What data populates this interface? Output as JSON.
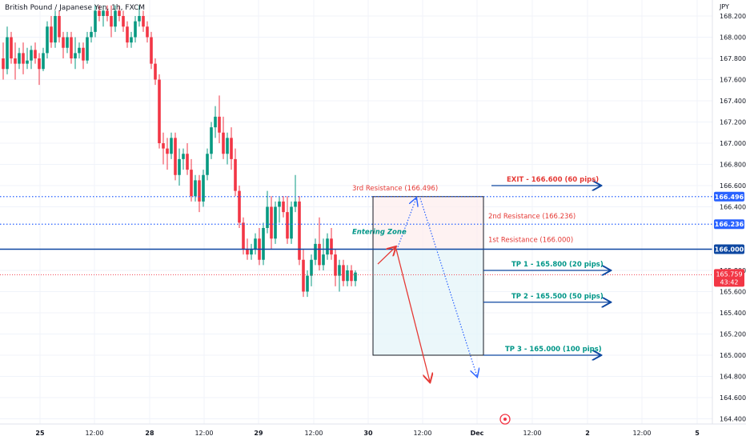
{
  "window": {
    "title": "British Pound / Japanese Yen, 1h, FXCM",
    "currency": "JPY"
  },
  "colors": {
    "bull": "#089981",
    "bear": "#f23645",
    "blue": "#0d47a1",
    "dotted_blue": "#2962ff",
    "red_text": "#e53935",
    "teal_text": "#009688"
  },
  "price_axis": {
    "ticks": [
      "168.200",
      "168.000",
      "167.800",
      "167.600",
      "167.400",
      "167.200",
      "167.000",
      "166.800",
      "166.600",
      "166.400",
      "165.800",
      "165.600",
      "165.400",
      "165.200",
      "165.000",
      "164.800",
      "164.600",
      "164.400"
    ],
    "badges": {
      "r3": "166.496",
      "r2": "166.236",
      "r1": "166.000",
      "last_price": "165.759",
      "countdown": "43:42"
    }
  },
  "time_axis": {
    "labels": [
      "25",
      "12:00",
      "28",
      "12:00",
      "29",
      "12:00",
      "30",
      "12:00",
      "Dec",
      "12:00",
      "2",
      "12:00",
      "5"
    ]
  },
  "annotations": {
    "r3_label": "3rd Resistance (166.496)",
    "r2_label": "2nd Resistance (166.236)",
    "r1_label": "1st Resistance (166.000)",
    "entering_zone": "Entering Zone",
    "exit_label": "EXIT - 166.600 (60 pips)",
    "tp1_label": "TP 1 - 165.800 (20 pips)",
    "tp2_label": "TP 2 - 165.500 (50 pips)",
    "tp3_label": "TP 3 - 165.000 (100 pips)"
  },
  "chart_data": {
    "type": "candlestick",
    "title": "British Pound / Japanese Yen, 1h, FXCM",
    "y_unit": "JPY",
    "ylim": [
      164.35,
      168.3
    ],
    "levels": [
      {
        "name": "3rd Resistance",
        "value": 166.496
      },
      {
        "name": "2nd Resistance",
        "value": 166.236
      },
      {
        "name": "1st Resistance",
        "value": 166.0
      },
      {
        "name": "Last price",
        "value": 165.759
      }
    ],
    "targets": [
      {
        "name": "EXIT",
        "value": 166.6,
        "pips": 60
      },
      {
        "name": "TP 1",
        "value": 165.8,
        "pips": 20
      },
      {
        "name": "TP 2",
        "value": 165.5,
        "pips": 50
      },
      {
        "name": "TP 3",
        "value": 165.0,
        "pips": 100
      }
    ],
    "ohlc": [
      {
        "o": 167.8,
        "h": 167.95,
        "l": 167.6,
        "c": 167.7
      },
      {
        "o": 167.7,
        "h": 168.1,
        "l": 167.65,
        "c": 168.0
      },
      {
        "o": 168.0,
        "h": 168.05,
        "l": 167.75,
        "c": 167.8
      },
      {
        "o": 167.8,
        "h": 167.95,
        "l": 167.6,
        "c": 167.75
      },
      {
        "o": 167.75,
        "h": 167.9,
        "l": 167.7,
        "c": 167.85
      },
      {
        "o": 167.85,
        "h": 167.95,
        "l": 167.65,
        "c": 167.75
      },
      {
        "o": 167.75,
        "h": 167.9,
        "l": 167.7,
        "c": 167.78
      },
      {
        "o": 167.78,
        "h": 167.92,
        "l": 167.7,
        "c": 167.88
      },
      {
        "o": 167.88,
        "h": 167.95,
        "l": 167.75,
        "c": 167.8
      },
      {
        "o": 167.8,
        "h": 167.85,
        "l": 167.55,
        "c": 167.7
      },
      {
        "o": 167.7,
        "h": 167.9,
        "l": 167.68,
        "c": 167.85
      },
      {
        "o": 167.85,
        "h": 168.15,
        "l": 167.8,
        "c": 168.1
      },
      {
        "o": 168.1,
        "h": 168.2,
        "l": 167.9,
        "c": 167.95
      },
      {
        "o": 167.95,
        "h": 168.25,
        "l": 167.9,
        "c": 168.2
      },
      {
        "o": 168.2,
        "h": 168.25,
        "l": 167.95,
        "c": 168.0
      },
      {
        "o": 168.0,
        "h": 168.05,
        "l": 167.8,
        "c": 167.9
      },
      {
        "o": 167.9,
        "h": 168.05,
        "l": 167.85,
        "c": 168.0
      },
      {
        "o": 168.0,
        "h": 168.05,
        "l": 167.75,
        "c": 167.8
      },
      {
        "o": 167.8,
        "h": 168.0,
        "l": 167.7,
        "c": 167.85
      },
      {
        "o": 167.85,
        "h": 167.95,
        "l": 167.8,
        "c": 167.9
      },
      {
        "o": 167.9,
        "h": 167.95,
        "l": 167.7,
        "c": 167.78
      },
      {
        "o": 167.78,
        "h": 168.05,
        "l": 167.75,
        "c": 168.0
      },
      {
        "o": 168.0,
        "h": 168.1,
        "l": 167.95,
        "c": 168.05
      },
      {
        "o": 168.05,
        "h": 168.3,
        "l": 168.0,
        "c": 168.25
      },
      {
        "o": 168.25,
        "h": 168.3,
        "l": 168.15,
        "c": 168.2
      },
      {
        "o": 168.2,
        "h": 168.3,
        "l": 168.1,
        "c": 168.25
      },
      {
        "o": 168.25,
        "h": 168.3,
        "l": 168.15,
        "c": 168.2
      },
      {
        "o": 168.2,
        "h": 168.3,
        "l": 168.0,
        "c": 168.1
      },
      {
        "o": 168.1,
        "h": 168.3,
        "l": 168.05,
        "c": 168.25
      },
      {
        "o": 168.25,
        "h": 168.3,
        "l": 168.15,
        "c": 168.2
      },
      {
        "o": 168.2,
        "h": 168.25,
        "l": 168.05,
        "c": 168.1
      },
      {
        "o": 168.1,
        "h": 168.15,
        "l": 167.9,
        "c": 167.95
      },
      {
        "o": 167.95,
        "h": 168.05,
        "l": 167.9,
        "c": 168.0
      },
      {
        "o": 168.0,
        "h": 168.2,
        "l": 167.95,
        "c": 168.15
      },
      {
        "o": 168.15,
        "h": 168.3,
        "l": 168.1,
        "c": 168.2
      },
      {
        "o": 168.2,
        "h": 168.25,
        "l": 168.05,
        "c": 168.1
      },
      {
        "o": 168.1,
        "h": 168.15,
        "l": 167.95,
        "c": 168.0
      },
      {
        "o": 168.0,
        "h": 168.05,
        "l": 167.7,
        "c": 167.75
      },
      {
        "o": 167.75,
        "h": 167.8,
        "l": 167.55,
        "c": 167.6
      },
      {
        "o": 167.6,
        "h": 167.65,
        "l": 166.95,
        "c": 167.0
      },
      {
        "o": 167.0,
        "h": 167.1,
        "l": 166.8,
        "c": 166.95
      },
      {
        "o": 166.95,
        "h": 167.05,
        "l": 166.75,
        "c": 166.9
      },
      {
        "o": 166.9,
        "h": 167.1,
        "l": 166.85,
        "c": 167.05
      },
      {
        "o": 167.05,
        "h": 167.1,
        "l": 166.65,
        "c": 166.7
      },
      {
        "o": 166.7,
        "h": 166.95,
        "l": 166.6,
        "c": 166.85
      },
      {
        "o": 166.85,
        "h": 166.95,
        "l": 166.75,
        "c": 166.9
      },
      {
        "o": 166.9,
        "h": 167.0,
        "l": 166.7,
        "c": 166.75
      },
      {
        "o": 166.75,
        "h": 166.85,
        "l": 166.45,
        "c": 166.5
      },
      {
        "o": 166.5,
        "h": 166.7,
        "l": 166.45,
        "c": 166.65
      },
      {
        "o": 166.65,
        "h": 166.7,
        "l": 166.35,
        "c": 166.45
      },
      {
        "o": 166.45,
        "h": 166.75,
        "l": 166.4,
        "c": 166.7
      },
      {
        "o": 166.7,
        "h": 166.95,
        "l": 166.65,
        "c": 166.9
      },
      {
        "o": 166.9,
        "h": 167.2,
        "l": 166.85,
        "c": 167.15
      },
      {
        "o": 167.15,
        "h": 167.35,
        "l": 167.05,
        "c": 167.25
      },
      {
        "o": 167.25,
        "h": 167.45,
        "l": 167.0,
        "c": 167.1
      },
      {
        "o": 167.1,
        "h": 167.25,
        "l": 166.85,
        "c": 166.9
      },
      {
        "o": 166.9,
        "h": 167.1,
        "l": 166.8,
        "c": 167.05
      },
      {
        "o": 167.05,
        "h": 167.15,
        "l": 166.75,
        "c": 166.85
      },
      {
        "o": 166.85,
        "h": 166.95,
        "l": 166.5,
        "c": 166.55
      },
      {
        "o": 166.55,
        "h": 166.6,
        "l": 166.2,
        "c": 166.25
      },
      {
        "o": 166.25,
        "h": 166.3,
        "l": 165.95,
        "c": 166.0
      },
      {
        "o": 166.0,
        "h": 166.1,
        "l": 165.9,
        "c": 165.95
      },
      {
        "o": 165.95,
        "h": 166.05,
        "l": 165.9,
        "c": 166.0
      },
      {
        "o": 166.0,
        "h": 166.15,
        "l": 165.95,
        "c": 166.1
      },
      {
        "o": 166.1,
        "h": 166.2,
        "l": 165.85,
        "c": 165.9
      },
      {
        "o": 165.9,
        "h": 166.25,
        "l": 165.85,
        "c": 166.2
      },
      {
        "o": 166.2,
        "h": 166.55,
        "l": 166.15,
        "c": 166.4
      },
      {
        "o": 166.4,
        "h": 166.5,
        "l": 166.0,
        "c": 166.1
      },
      {
        "o": 166.1,
        "h": 166.45,
        "l": 166.05,
        "c": 166.4
      },
      {
        "o": 166.4,
        "h": 166.5,
        "l": 166.25,
        "c": 166.45
      },
      {
        "o": 166.45,
        "h": 166.5,
        "l": 166.3,
        "c": 166.35
      },
      {
        "o": 166.35,
        "h": 166.5,
        "l": 166.05,
        "c": 166.1
      },
      {
        "o": 166.1,
        "h": 166.45,
        "l": 166.05,
        "c": 166.4
      },
      {
        "o": 166.4,
        "h": 166.7,
        "l": 166.35,
        "c": 166.45
      },
      {
        "o": 166.45,
        "h": 166.5,
        "l": 165.85,
        "c": 165.9
      },
      {
        "o": 165.9,
        "h": 166.0,
        "l": 165.55,
        "c": 165.6
      },
      {
        "o": 165.6,
        "h": 165.8,
        "l": 165.55,
        "c": 165.75
      },
      {
        "o": 165.75,
        "h": 165.95,
        "l": 165.65,
        "c": 165.9
      },
      {
        "o": 165.9,
        "h": 166.1,
        "l": 165.85,
        "c": 166.05
      },
      {
        "o": 166.05,
        "h": 166.3,
        "l": 165.8,
        "c": 165.85
      },
      {
        "o": 165.85,
        "h": 166.1,
        "l": 165.8,
        "c": 165.95
      },
      {
        "o": 165.95,
        "h": 166.15,
        "l": 165.9,
        "c": 166.1
      },
      {
        "o": 166.1,
        "h": 166.2,
        "l": 165.9,
        "c": 165.95
      },
      {
        "o": 165.95,
        "h": 166.0,
        "l": 165.65,
        "c": 165.75
      },
      {
        "o": 165.75,
        "h": 165.9,
        "l": 165.6,
        "c": 165.85
      },
      {
        "o": 165.85,
        "h": 165.9,
        "l": 165.65,
        "c": 165.7
      },
      {
        "o": 165.7,
        "h": 165.85,
        "l": 165.65,
        "c": 165.8
      },
      {
        "o": 165.8,
        "h": 165.85,
        "l": 165.65,
        "c": 165.7
      },
      {
        "o": 165.7,
        "h": 165.8,
        "l": 165.65,
        "c": 165.78
      }
    ]
  }
}
